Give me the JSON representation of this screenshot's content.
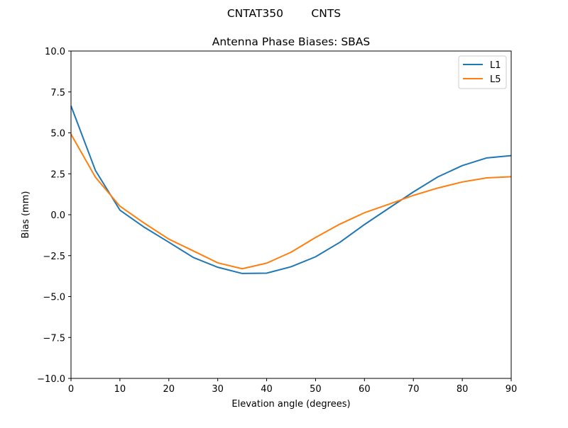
{
  "chart_data": {
    "type": "line",
    "suptitle": "CNTAT350        CNTS",
    "title": "Antenna Phase Biases: SBAS",
    "xlabel": "Elevation angle (degrees)",
    "ylabel": "Bias (mm)",
    "xlim": [
      0,
      90
    ],
    "ylim": [
      -10,
      10
    ],
    "xticks": [
      0,
      10,
      20,
      30,
      40,
      50,
      60,
      70,
      80,
      90
    ],
    "yticks": [
      -10.0,
      -7.5,
      -5.0,
      -2.5,
      0.0,
      2.5,
      5.0,
      7.5,
      10.0
    ],
    "ytick_labels": [
      "−10.0",
      "−7.5",
      "−5.0",
      "−2.5",
      "0.0",
      "2.5",
      "5.0",
      "7.5",
      "10.0"
    ],
    "grid": false,
    "legend": "top-right",
    "x": [
      0,
      5,
      10,
      15,
      20,
      25,
      30,
      35,
      40,
      45,
      50,
      55,
      60,
      65,
      70,
      75,
      80,
      85,
      90
    ],
    "series": [
      {
        "name": "L1",
        "color": "#1f77b4",
        "values": [
          6.65,
          2.7,
          0.28,
          -0.77,
          -1.68,
          -2.61,
          -3.21,
          -3.59,
          -3.57,
          -3.18,
          -2.57,
          -1.68,
          -0.6,
          0.4,
          1.39,
          2.31,
          3.0,
          3.47,
          3.61
        ]
      },
      {
        "name": "L5",
        "color": "#ff7f0e",
        "values": [
          4.92,
          2.29,
          0.52,
          -0.52,
          -1.49,
          -2.21,
          -2.94,
          -3.3,
          -2.96,
          -2.29,
          -1.39,
          -0.57,
          0.12,
          0.64,
          1.18,
          1.63,
          2.0,
          2.25,
          2.32
        ]
      }
    ]
  }
}
